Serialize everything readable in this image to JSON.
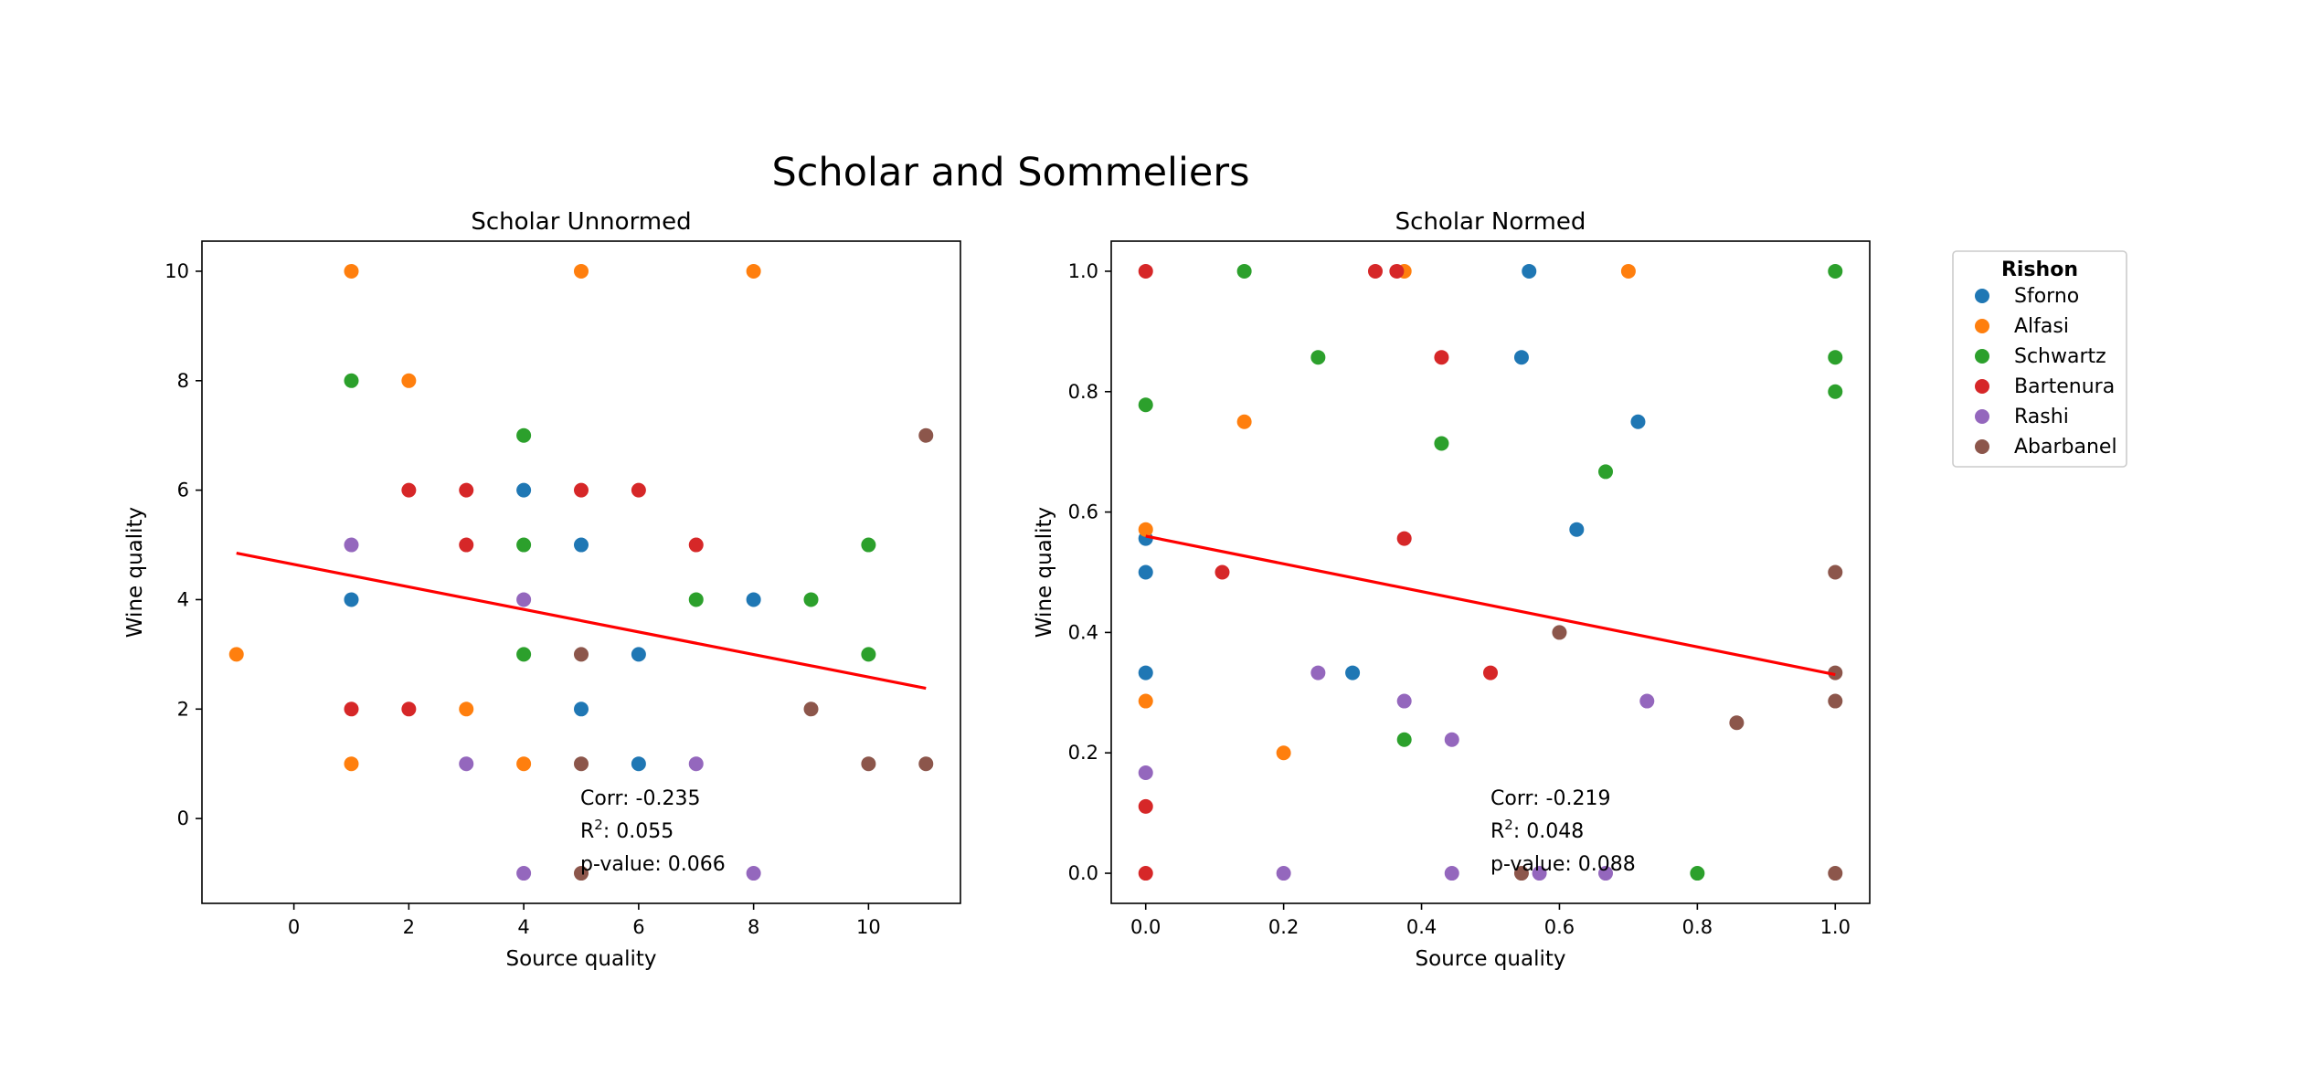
{
  "figure": {
    "suptitle": "Scholar and Sommeliers"
  },
  "legend": {
    "title": "Rishon",
    "placement": "outside-right-top",
    "entries": [
      {
        "name": "Sforno",
        "color": "#1f77b4"
      },
      {
        "name": "Alfasi",
        "color": "#ff7f0e"
      },
      {
        "name": "Schwartz",
        "color": "#2ca02c"
      },
      {
        "name": "Bartenura",
        "color": "#d62728"
      },
      {
        "name": "Rashi",
        "color": "#9467bd"
      },
      {
        "name": "Abarbanel",
        "color": "#8c564b"
      }
    ]
  },
  "chart_data": [
    {
      "type": "scatter",
      "title": "Scholar Unnormed",
      "xlabel": "Source quality",
      "ylabel": "Wine quality",
      "xlim": [
        -1.6,
        11.6
      ],
      "ylim": [
        -1.55,
        10.55
      ],
      "xticks": [
        0,
        2,
        4,
        6,
        8,
        10
      ],
      "yticks": [
        0,
        2,
        4,
        6,
        8,
        10
      ],
      "grid": false,
      "fit_line": {
        "color": "#ff0000",
        "x": [
          -1,
          11
        ],
        "y": [
          4.85,
          2.38
        ]
      },
      "stats": {
        "corr": "Corr: -0.235",
        "r2_label": "R",
        "r2_sup": "2",
        "r2_value": ": 0.055",
        "pvalue": "p-value: 0.066"
      },
      "series": [
        {
          "name": "Sforno",
          "points": [
            [
              1,
              4
            ],
            [
              4,
              6
            ],
            [
              5,
              5
            ],
            [
              5,
              2
            ],
            [
              6,
              3
            ],
            [
              6,
              1
            ],
            [
              8,
              4
            ]
          ]
        },
        {
          "name": "Alfasi",
          "points": [
            [
              -1,
              3
            ],
            [
              1,
              10
            ],
            [
              1,
              1
            ],
            [
              2,
              8
            ],
            [
              3,
              2
            ],
            [
              4,
              1
            ],
            [
              5,
              10
            ],
            [
              8,
              10
            ]
          ]
        },
        {
          "name": "Schwartz",
          "points": [
            [
              1,
              8
            ],
            [
              4,
              7
            ],
            [
              4,
              5
            ],
            [
              4,
              3
            ],
            [
              7,
              4
            ],
            [
              9,
              4
            ],
            [
              10,
              5
            ],
            [
              10,
              3
            ]
          ]
        },
        {
          "name": "Bartenura",
          "points": [
            [
              1,
              2
            ],
            [
              2,
              6
            ],
            [
              2,
              2
            ],
            [
              3,
              6
            ],
            [
              3,
              5
            ],
            [
              5,
              6
            ],
            [
              6,
              6
            ],
            [
              7,
              5
            ]
          ]
        },
        {
          "name": "Rashi",
          "points": [
            [
              1,
              5
            ],
            [
              3,
              1
            ],
            [
              4,
              4
            ],
            [
              4,
              -1
            ],
            [
              7,
              1
            ],
            [
              8,
              -1
            ]
          ]
        },
        {
          "name": "Abarbanel",
          "points": [
            [
              5,
              3
            ],
            [
              5,
              1
            ],
            [
              5,
              -1
            ],
            [
              9,
              2
            ],
            [
              10,
              1
            ],
            [
              11,
              7
            ],
            [
              11,
              1
            ]
          ]
        }
      ]
    },
    {
      "type": "scatter",
      "title": "Scholar Normed",
      "xlabel": "Source quality",
      "ylabel": "Wine quality",
      "xlim": [
        -0.05,
        1.05
      ],
      "ylim": [
        -0.05,
        1.05
      ],
      "xticks": [
        "0.0",
        "0.2",
        "0.4",
        "0.6",
        "0.8",
        "1.0"
      ],
      "yticks": [
        "0.0",
        "0.2",
        "0.4",
        "0.6",
        "0.8",
        "1.0"
      ],
      "grid": false,
      "fit_line": {
        "color": "#ff0000",
        "x": [
          0,
          1
        ],
        "y": [
          0.56,
          0.33
        ]
      },
      "stats": {
        "corr": "Corr: -0.219",
        "r2_label": "R",
        "r2_sup": "2",
        "r2_value": ": 0.048",
        "pvalue": "p-value: 0.088"
      },
      "series": [
        {
          "name": "Sforno",
          "points": [
            [
              0,
              0.556
            ],
            [
              0,
              0.5
            ],
            [
              0,
              0.333
            ],
            [
              0.3,
              0.333
            ],
            [
              0.545,
              0.857
            ],
            [
              0.556,
              1.0
            ],
            [
              0.625,
              0.571
            ],
            [
              0.714,
              0.75
            ]
          ]
        },
        {
          "name": "Alfasi",
          "points": [
            [
              0,
              0.571
            ],
            [
              0,
              0.286
            ],
            [
              0.143,
              0.75
            ],
            [
              0.2,
              0.2
            ],
            [
              0.375,
              1.0
            ],
            [
              0.7,
              1.0
            ]
          ]
        },
        {
          "name": "Schwartz",
          "points": [
            [
              0,
              0.778
            ],
            [
              0.143,
              1.0
            ],
            [
              0.25,
              0.857
            ],
            [
              0.375,
              0.222
            ],
            [
              0.429,
              0.714
            ],
            [
              0.667,
              0.667
            ],
            [
              0.8,
              0
            ],
            [
              1,
              1.0
            ],
            [
              1,
              0.857
            ],
            [
              1,
              0.8
            ]
          ]
        },
        {
          "name": "Bartenura",
          "points": [
            [
              0,
              1.0
            ],
            [
              0,
              0.111
            ],
            [
              0,
              0
            ],
            [
              0.111,
              0.5
            ],
            [
              0.333,
              1.0
            ],
            [
              0.364,
              1.0
            ],
            [
              0.375,
              0.556
            ],
            [
              0.429,
              0.857
            ],
            [
              0.5,
              0.333
            ]
          ]
        },
        {
          "name": "Rashi",
          "points": [
            [
              0,
              0.167
            ],
            [
              0.2,
              0
            ],
            [
              0.25,
              0.333
            ],
            [
              0.375,
              0.286
            ],
            [
              0.444,
              0.222
            ],
            [
              0.444,
              0
            ],
            [
              0.571,
              0
            ],
            [
              0.667,
              0
            ],
            [
              0.727,
              0.286
            ]
          ]
        },
        {
          "name": "Abarbanel",
          "points": [
            [
              0.545,
              0
            ],
            [
              0.6,
              0.4
            ],
            [
              0.857,
              0.25
            ],
            [
              1,
              0.5
            ],
            [
              1,
              0.333
            ],
            [
              1,
              0.286
            ],
            [
              1,
              0
            ]
          ]
        }
      ]
    }
  ]
}
